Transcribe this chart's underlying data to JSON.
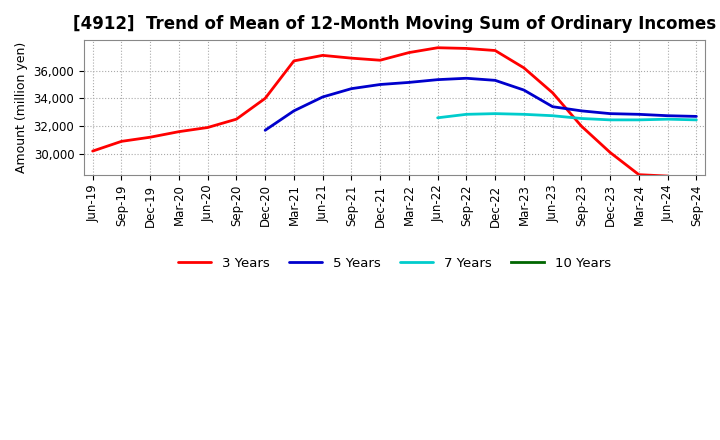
{
  "title": "[4912]  Trend of Mean of 12-Month Moving Sum of Ordinary Incomes",
  "ylabel": "Amount (million yen)",
  "background_color": "#ffffff",
  "plot_bg_color": "#ffffff",
  "grid_color": "#aaaaaa",
  "x_labels": [
    "Jun-19",
    "Sep-19",
    "Dec-19",
    "Mar-20",
    "Jun-20",
    "Sep-20",
    "Dec-20",
    "Mar-21",
    "Jun-21",
    "Sep-21",
    "Dec-21",
    "Mar-22",
    "Jun-22",
    "Sep-22",
    "Dec-22",
    "Mar-23",
    "Jun-23",
    "Sep-23",
    "Dec-23",
    "Mar-24",
    "Jun-24",
    "Sep-24"
  ],
  "series": {
    "3 Years": {
      "color": "#ff0000",
      "data_x": [
        0,
        1,
        2,
        3,
        4,
        5,
        6,
        7,
        8,
        9,
        10,
        11,
        12,
        13,
        14,
        15,
        16,
        17,
        18,
        19,
        20
      ],
      "data_y": [
        30200,
        30900,
        31200,
        31600,
        31900,
        32500,
        34000,
        36700,
        37100,
        36900,
        36750,
        37300,
        37650,
        37600,
        37450,
        36200,
        34400,
        32000,
        30100,
        28500,
        28400
      ]
    },
    "5 Years": {
      "color": "#0000cc",
      "data_x": [
        6,
        7,
        8,
        9,
        10,
        11,
        12,
        13,
        14,
        15,
        16,
        17,
        18,
        19,
        20,
        21
      ],
      "data_y": [
        31700,
        33100,
        34100,
        34700,
        35000,
        35150,
        35350,
        35450,
        35300,
        34600,
        33400,
        33100,
        32900,
        32850,
        32750,
        32700
      ]
    },
    "7 Years": {
      "color": "#00cccc",
      "data_x": [
        12,
        13,
        14,
        15,
        16,
        17,
        18,
        19,
        20,
        21
      ],
      "data_y": [
        32600,
        32850,
        32900,
        32850,
        32750,
        32550,
        32450,
        32450,
        32500,
        32450
      ]
    },
    "10 Years": {
      "color": "#006600",
      "data_x": [],
      "data_y": []
    }
  },
  "ylim_min": 28500,
  "ylim_max": 38200,
  "yticks": [
    30000,
    32000,
    34000,
    36000
  ],
  "title_fontsize": 12,
  "axis_fontsize": 9,
  "tick_fontsize": 8.5,
  "legend_fontsize": 9.5,
  "linewidth": 2.0
}
